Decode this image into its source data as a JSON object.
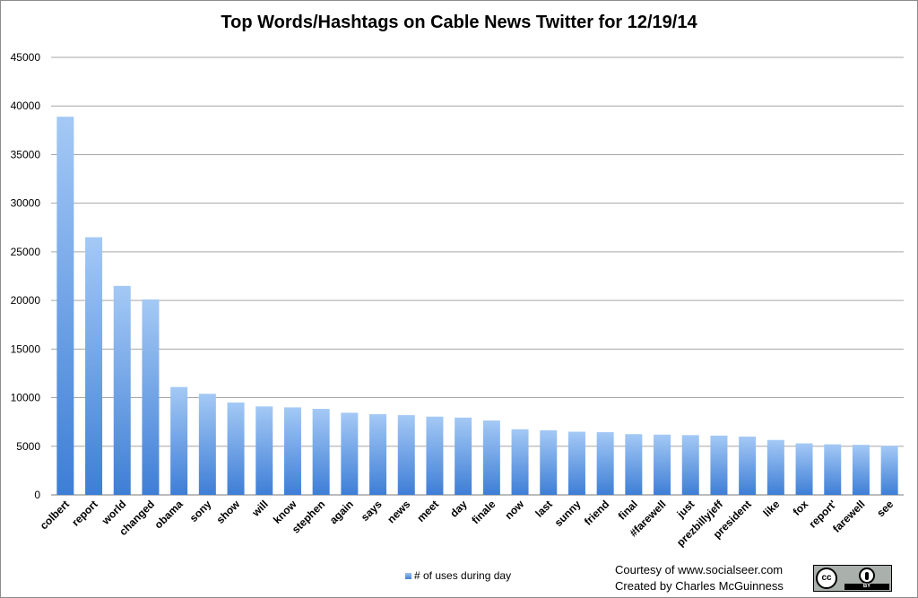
{
  "chart_data": {
    "type": "bar",
    "title": "Top Words/Hashtags on Cable News Twitter for 12/19/14",
    "xlabel": "",
    "ylabel": "",
    "ylim": [
      0,
      45000
    ],
    "yticks": [
      0,
      5000,
      10000,
      15000,
      20000,
      25000,
      30000,
      35000,
      40000,
      45000
    ],
    "grid": true,
    "legend_position": "bottom",
    "bar_color_top": "#a4c9f5",
    "bar_color_bottom": "#3e7ed6",
    "categories": [
      "colbert",
      "report",
      "world",
      "changed",
      "obama",
      "sony",
      "show",
      "will",
      "know",
      "stephen",
      "again",
      "says",
      "news",
      "meet",
      "day",
      "finale",
      "now",
      "last",
      "sunny",
      "friend",
      "final",
      "#farewell",
      "just",
      "prezbillyjeff",
      "president",
      "like",
      "fox",
      "report'",
      "farewell",
      "see"
    ],
    "series": [
      {
        "name": "# of uses during day",
        "values": [
          38900,
          26500,
          21500,
          20100,
          11100,
          10400,
          9500,
          9100,
          9000,
          8850,
          8450,
          8300,
          8200,
          8050,
          7950,
          7650,
          6750,
          6650,
          6500,
          6450,
          6250,
          6200,
          6150,
          6100,
          6000,
          5650,
          5300,
          5200,
          5150,
          5050
        ]
      }
    ]
  },
  "credits": {
    "line1": "Courtesy of www.socialseer.com",
    "line2": "Created by Charles McGuinness"
  },
  "license_badge": {
    "cc_text": "cc",
    "by_text": "BY"
  }
}
